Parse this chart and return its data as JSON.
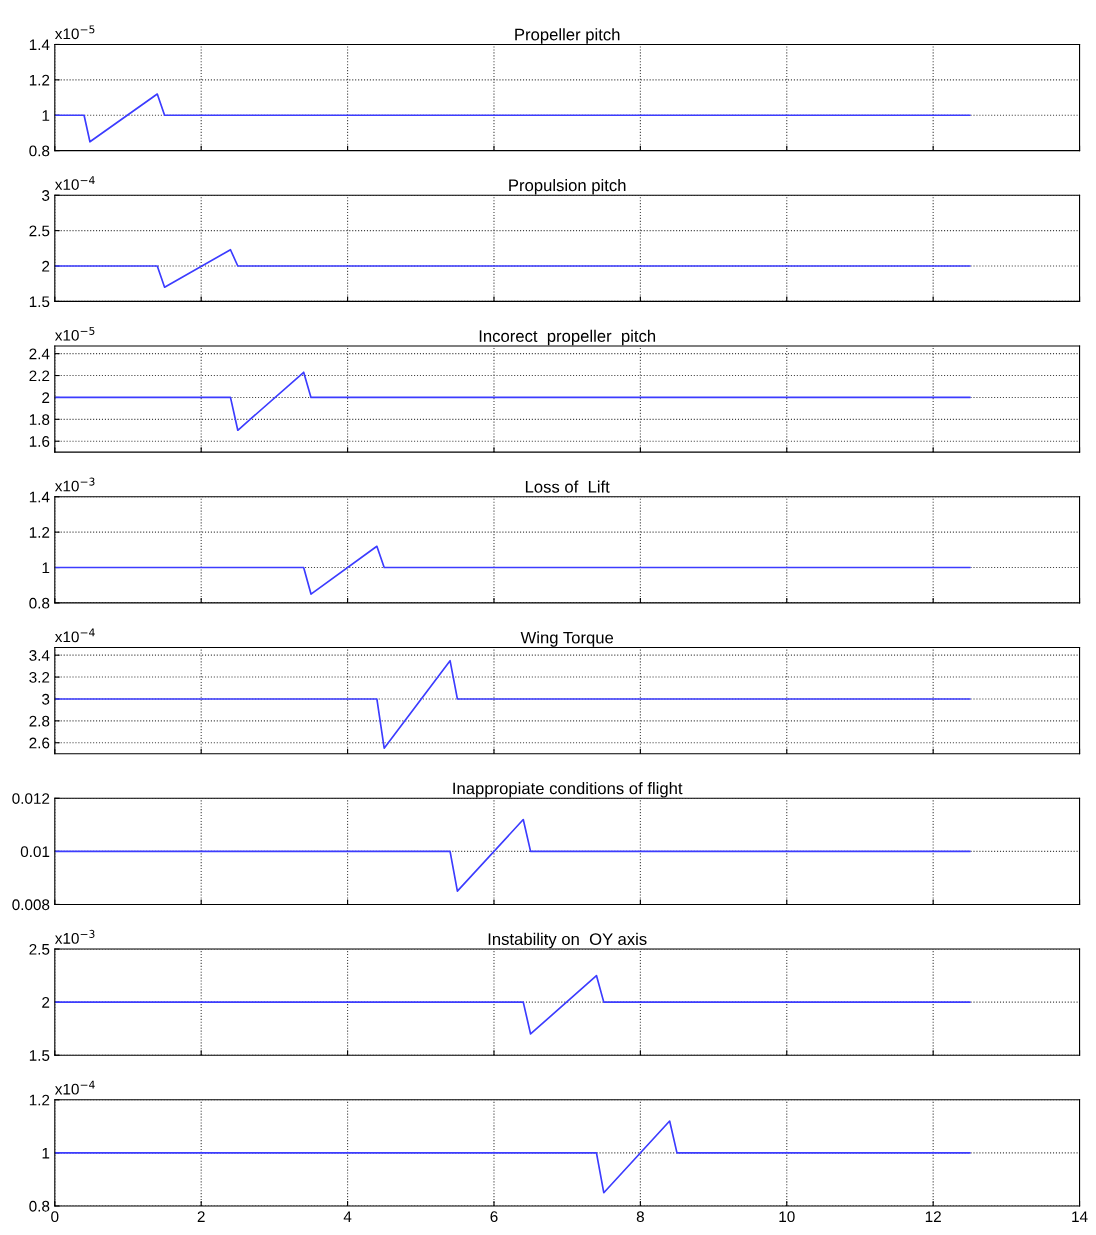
{
  "chart_data": [
    {
      "type": "line",
      "title": "Propeller pitch",
      "annotations": [
        "x10$^{−5}$"
      ],
      "x": [
        0,
        0.4,
        0.48,
        1.4,
        1.5,
        12.5
      ],
      "series": [
        {
          "color": "#3c3cff",
          "values": [
            1,
            1,
            0.85,
            1.12,
            1,
            1
          ]
        }
      ],
      "xlim": [
        0,
        14
      ],
      "xticks": [
        0,
        2,
        4,
        6,
        8,
        10,
        12,
        14
      ],
      "ylim": [
        0.8,
        1.4
      ],
      "yticks": [
        0.8,
        1,
        1.2,
        1.4
      ],
      "grid": true,
      "tick_labels": "y",
      "line_style": "solid"
    },
    {
      "type": "line",
      "title": "Propulsion pitch",
      "annotations": [
        "x10$^{−4}$"
      ],
      "x": [
        0,
        1.4,
        1.5,
        2.4,
        2.5,
        12.5
      ],
      "series": [
        {
          "color": "#3c3cff",
          "values": [
            2,
            2,
            1.7,
            2.23,
            2,
            2
          ]
        }
      ],
      "xlim": [
        0,
        14
      ],
      "xticks": [
        0,
        2,
        4,
        6,
        8,
        10,
        12,
        14
      ],
      "ylim": [
        1.5,
        3
      ],
      "yticks": [
        1.5,
        2,
        2.5,
        3
      ],
      "grid": true,
      "tick_labels": "y",
      "line_style": "solid"
    },
    {
      "type": "line",
      "title": "Incorect  propeller  pitch",
      "annotations": [
        "x10$^{−5}$"
      ],
      "x": [
        0,
        2.4,
        2.5,
        3.4,
        3.5,
        12.5
      ],
      "series": [
        {
          "color": "#3c3cff",
          "values": [
            2,
            2,
            1.7,
            2.23,
            2,
            2
          ]
        }
      ],
      "xlim": [
        0,
        14
      ],
      "xticks": [
        0,
        2,
        4,
        6,
        8,
        10,
        12,
        14
      ],
      "ylim": [
        1.5,
        2.47
      ],
      "yticks": [
        1.6,
        1.8,
        2,
        2.2,
        2.4
      ],
      "grid": true,
      "tick_labels": "y",
      "line_style": "solid"
    },
    {
      "type": "line",
      "title": "Loss of  Lift",
      "annotations": [
        "x10$^{−3}$"
      ],
      "x": [
        0,
        3.4,
        3.5,
        4.4,
        4.5,
        12.5
      ],
      "series": [
        {
          "color": "#3c3cff",
          "values": [
            1,
            1,
            0.85,
            1.12,
            1,
            1
          ]
        }
      ],
      "xlim": [
        0,
        14
      ],
      "xticks": [
        0,
        2,
        4,
        6,
        8,
        10,
        12,
        14
      ],
      "ylim": [
        0.8,
        1.4
      ],
      "yticks": [
        0.8,
        1,
        1.2,
        1.4
      ],
      "grid": true,
      "tick_labels": "y",
      "line_style": "solid"
    },
    {
      "type": "line",
      "title": "Wing Torque",
      "annotations": [
        "x10$^{−4}$"
      ],
      "x": [
        0,
        4.4,
        4.5,
        5.4,
        5.5,
        12.5
      ],
      "series": [
        {
          "color": "#3c3cff",
          "values": [
            3,
            3,
            2.55,
            3.35,
            3,
            3
          ]
        }
      ],
      "xlim": [
        0,
        14
      ],
      "xticks": [
        0,
        2,
        4,
        6,
        8,
        10,
        12,
        14
      ],
      "ylim": [
        2.5,
        3.47
      ],
      "yticks": [
        2.6,
        2.8,
        3,
        3.2,
        3.4
      ],
      "grid": true,
      "tick_labels": "y",
      "line_style": "solid"
    },
    {
      "type": "line",
      "title": "Inappropiate conditions of flight",
      "x": [
        0,
        5.4,
        5.5,
        6.4,
        6.5,
        12.5
      ],
      "series": [
        {
          "color": "#3c3cff",
          "values": [
            0.01,
            0.01,
            0.0085,
            0.0112,
            0.01,
            0.01
          ]
        }
      ],
      "xlim": [
        0,
        14
      ],
      "xticks": [
        0,
        2,
        4,
        6,
        8,
        10,
        12,
        14
      ],
      "ylim": [
        0.008,
        0.012
      ],
      "yticks": [
        0.008,
        0.01,
        0.012
      ],
      "grid": true,
      "tick_labels": "y",
      "line_style": "solid"
    },
    {
      "type": "line",
      "title": "Instability on  OY axis",
      "annotations": [
        "x10$^{−3}$"
      ],
      "x": [
        0,
        6.4,
        6.5,
        7.4,
        7.5,
        12.5
      ],
      "series": [
        {
          "color": "#3c3cff",
          "values": [
            2,
            2,
            1.7,
            2.25,
            2,
            2
          ]
        }
      ],
      "xlim": [
        0,
        14
      ],
      "xticks": [
        0,
        2,
        4,
        6,
        8,
        10,
        12,
        14
      ],
      "ylim": [
        1.5,
        2.5
      ],
      "yticks": [
        1.5,
        2,
        2.5
      ],
      "grid": true,
      "tick_labels": "y",
      "line_style": "solid"
    },
    {
      "type": "line",
      "annotations": [
        "x10$^{−4}$"
      ],
      "x": [
        0,
        7.4,
        7.5,
        8.4,
        8.5,
        12.5
      ],
      "series": [
        {
          "color": "#3c3cff",
          "values": [
            1,
            1,
            0.85,
            1.12,
            1,
            1
          ]
        }
      ],
      "xlim": [
        0,
        14
      ],
      "xticks": [
        0,
        2,
        4,
        6,
        8,
        10,
        12,
        14
      ],
      "ylim": [
        0.8,
        1.2
      ],
      "yticks": [
        0.8,
        1,
        1.2
      ],
      "grid": true,
      "line_style": "solid"
    }
  ]
}
